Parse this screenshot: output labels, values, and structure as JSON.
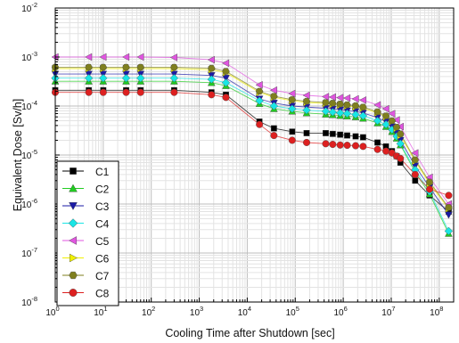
{
  "chart_data": {
    "type": "scatter",
    "xlabel": "Cooling Time after Shutdown [sec]",
    "ylabel": "Equivalent Dose [Sv/h]",
    "x_scale": "log",
    "y_scale": "log",
    "xlim": [
      1,
      200000000
    ],
    "ylim": [
      1e-08,
      0.01
    ],
    "x_ticks": [
      {
        "value": 1,
        "base": "10",
        "exp": "0"
      },
      {
        "value": 10,
        "base": "10",
        "exp": "1"
      },
      {
        "value": 100,
        "base": "10",
        "exp": "2"
      },
      {
        "value": 1000,
        "base": "10",
        "exp": "3"
      },
      {
        "value": 10000,
        "base": "10",
        "exp": "4"
      },
      {
        "value": 100000,
        "base": "10",
        "exp": "5"
      },
      {
        "value": 1000000,
        "base": "10",
        "exp": "6"
      },
      {
        "value": 10000000,
        "base": "10",
        "exp": "7"
      },
      {
        "value": 100000000,
        "base": "10",
        "exp": "8"
      }
    ],
    "y_ticks": [
      {
        "value": 0.01,
        "base": "10",
        "exp": "-2"
      },
      {
        "value": 0.001,
        "base": "10",
        "exp": "-3"
      },
      {
        "value": 0.0001,
        "base": "10",
        "exp": "-4"
      },
      {
        "value": 1e-05,
        "base": "10",
        "exp": "-5"
      },
      {
        "value": 1e-06,
        "base": "10",
        "exp": "-6"
      },
      {
        "value": 1e-07,
        "base": "10",
        "exp": "-7"
      },
      {
        "value": 1e-08,
        "base": "10",
        "exp": "-8"
      }
    ],
    "grid": true,
    "legend_position": "bottom-left",
    "x": [
      1,
      5,
      10,
      30,
      60,
      300,
      1800,
      3600,
      18000,
      36000,
      86400,
      172800,
      432000,
      604800,
      864000,
      1209600,
      1814400,
      2592000,
      5184000,
      7776000,
      10368000,
      12960000,
      15552000,
      31536000,
      63072000,
      157680000
    ],
    "series": [
      {
        "name": "C1",
        "marker": "square",
        "color": "#000000",
        "values": [
          0.00021,
          0.00021,
          0.00021,
          0.00021,
          0.00021,
          0.00021,
          0.00019,
          0.00017,
          4.8e-05,
          3.5e-05,
          3e-05,
          2.8e-05,
          2.8e-05,
          2.7e-05,
          2.6e-05,
          2.5e-05,
          2.4e-05,
          2.3e-05,
          1.8e-05,
          1.5e-05,
          1.2e-05,
          9.5e-06,
          7e-06,
          3e-06,
          1.5e-06,
          7e-07
        ]
      },
      {
        "name": "C2",
        "marker": "triangle-up",
        "color": "#22cc22",
        "values": [
          0.00032,
          0.00032,
          0.00032,
          0.00032,
          0.00032,
          0.00032,
          0.0003,
          0.00026,
          0.000112,
          8.8e-05,
          7.8e-05,
          7.2e-05,
          6.8e-05,
          6.6e-05,
          6.4e-05,
          6.2e-05,
          6e-05,
          5.6e-05,
          4.5e-05,
          3.8e-05,
          3e-05,
          2.2e-05,
          1.6e-05,
          4.5e-06,
          1.6e-06,
          2.5e-07
        ]
      },
      {
        "name": "C3",
        "marker": "triangle-down",
        "color": "#1a1aa6",
        "values": [
          0.00045,
          0.00045,
          0.00045,
          0.00045,
          0.00045,
          0.00045,
          0.00042,
          0.00037,
          0.00014,
          0.000115,
          0.0001,
          9.5e-05,
          9e-05,
          8.7e-05,
          8.4e-05,
          8e-05,
          7.7e-05,
          7.2e-05,
          5.8e-05,
          4.8e-05,
          3.8e-05,
          2.8e-05,
          2e-05,
          6e-06,
          2.2e-06,
          6e-07
        ]
      },
      {
        "name": "C4",
        "marker": "diamond",
        "color": "#19e5e5",
        "values": [
          0.00037,
          0.00037,
          0.00037,
          0.00037,
          0.00037,
          0.00037,
          0.00035,
          0.0003,
          0.000128,
          0.0001,
          8.8e-05,
          8.2e-05,
          7.8e-05,
          7.5e-05,
          7.2e-05,
          7e-05,
          6.7e-05,
          6.3e-05,
          5e-05,
          4.2e-05,
          3.3e-05,
          2.4e-05,
          1.7e-05,
          5e-06,
          1.8e-06,
          2.8e-07
        ]
      },
      {
        "name": "C5",
        "marker": "triangle-left",
        "color": "#e055e0",
        "values": [
          0.001,
          0.001,
          0.001,
          0.001,
          0.001,
          0.00098,
          0.00088,
          0.00075,
          0.00027,
          0.00021,
          0.00018,
          0.000165,
          0.000155,
          0.000152,
          0.000148,
          0.000145,
          0.00014,
          0.000132,
          0.000105,
          8.8e-05,
          7e-05,
          5.2e-05,
          3.8e-05,
          1.1e-05,
          3.5e-06,
          1e-06
        ]
      },
      {
        "name": "C6",
        "marker": "triangle-right",
        "color": "#f0f000",
        "values": [
          0.00058,
          0.00058,
          0.00058,
          0.00058,
          0.00058,
          0.00058,
          0.00055,
          0.00048,
          0.00019,
          0.00015,
          0.000128,
          0.000118,
          0.000112,
          0.000108,
          0.000104,
          0.0001,
          9.6e-05,
          9e-05,
          7.2e-05,
          6e-05,
          4.8e-05,
          3.5e-05,
          2.5e-05,
          7.5e-06,
          2.6e-06,
          8e-07
        ]
      },
      {
        "name": "C7",
        "marker": "hexagon",
        "color": "#7f7f1e",
        "values": [
          0.00062,
          0.00062,
          0.00062,
          0.00062,
          0.00062,
          0.00062,
          0.00059,
          0.00051,
          0.0002,
          0.000158,
          0.000135,
          0.000125,
          0.000118,
          0.000114,
          0.00011,
          0.000106,
          0.000102,
          9.5e-05,
          7.6e-05,
          6.3e-05,
          5e-05,
          3.7e-05,
          2.7e-05,
          8e-06,
          2.8e-06,
          8.5e-07
        ]
      },
      {
        "name": "C8",
        "marker": "circle",
        "color": "#dd2020",
        "values": [
          0.00019,
          0.00019,
          0.00019,
          0.00019,
          0.00019,
          0.00019,
          0.00017,
          0.00015,
          4.2e-05,
          2.5e-05,
          2e-05,
          1.8e-05,
          1.7e-05,
          1.65e-05,
          1.6e-05,
          1.58e-05,
          1.55e-05,
          1.5e-05,
          1.3e-05,
          1.2e-05,
          1.1e-05,
          9.5e-06,
          8.5e-06,
          4e-06,
          2e-06,
          1.5e-06
        ]
      }
    ]
  }
}
